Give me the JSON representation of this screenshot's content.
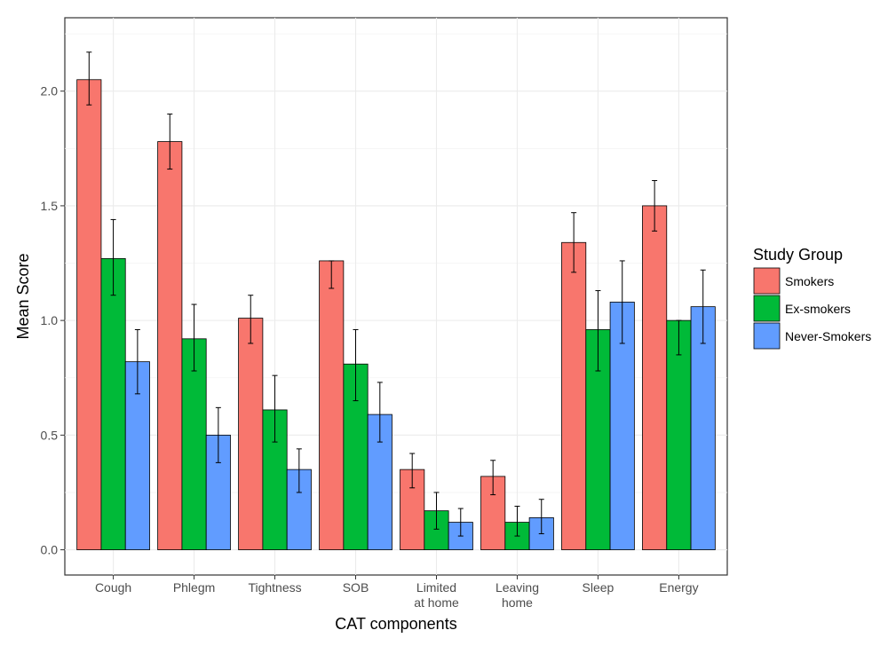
{
  "chart_data": {
    "type": "bar",
    "xlabel": "CAT components",
    "ylabel": "Mean Score",
    "ylim": [
      -0.11,
      2.32
    ],
    "yticks": [
      "0.0",
      "0.5",
      "1.0",
      "1.5",
      "2.0"
    ],
    "categories": [
      [
        "Cough"
      ],
      [
        "Phlegm"
      ],
      [
        "Tightness"
      ],
      [
        "SOB"
      ],
      [
        "Limited",
        "at home"
      ],
      [
        "Leaving",
        "home"
      ],
      [
        "Sleep"
      ],
      [
        "Energy"
      ]
    ],
    "grid": true,
    "legend": {
      "title": "Study Group",
      "position": "right"
    },
    "series": [
      {
        "name": "Smokers",
        "color": "#F8766D",
        "values": [
          2.05,
          1.78,
          1.01,
          1.26,
          0.35,
          0.32,
          1.34,
          1.5
        ],
        "err_low": [
          1.94,
          1.66,
          0.9,
          1.14,
          0.27,
          0.24,
          1.21,
          1.39
        ],
        "err_high": [
          2.17,
          1.9,
          1.11,
          1.26,
          0.42,
          0.39,
          1.47,
          1.61
        ]
      },
      {
        "name": "Ex-smokers",
        "color": "#00BA38",
        "values": [
          1.27,
          0.92,
          0.61,
          0.81,
          0.17,
          0.12,
          0.96,
          1.0
        ],
        "err_low": [
          1.11,
          0.78,
          0.47,
          0.65,
          0.09,
          0.06,
          0.78,
          0.85
        ],
        "err_high": [
          1.44,
          1.07,
          0.76,
          0.96,
          0.25,
          0.19,
          1.13,
          1.0
        ]
      },
      {
        "name": "Never-Smokers",
        "color": "#619CFF",
        "values": [
          0.82,
          0.5,
          0.35,
          0.59,
          0.12,
          0.14,
          1.08,
          1.06
        ],
        "err_low": [
          0.68,
          0.38,
          0.25,
          0.47,
          0.06,
          0.07,
          0.9,
          0.9
        ],
        "err_high": [
          0.96,
          0.62,
          0.44,
          0.73,
          0.18,
          0.22,
          1.26,
          1.22
        ]
      }
    ]
  }
}
